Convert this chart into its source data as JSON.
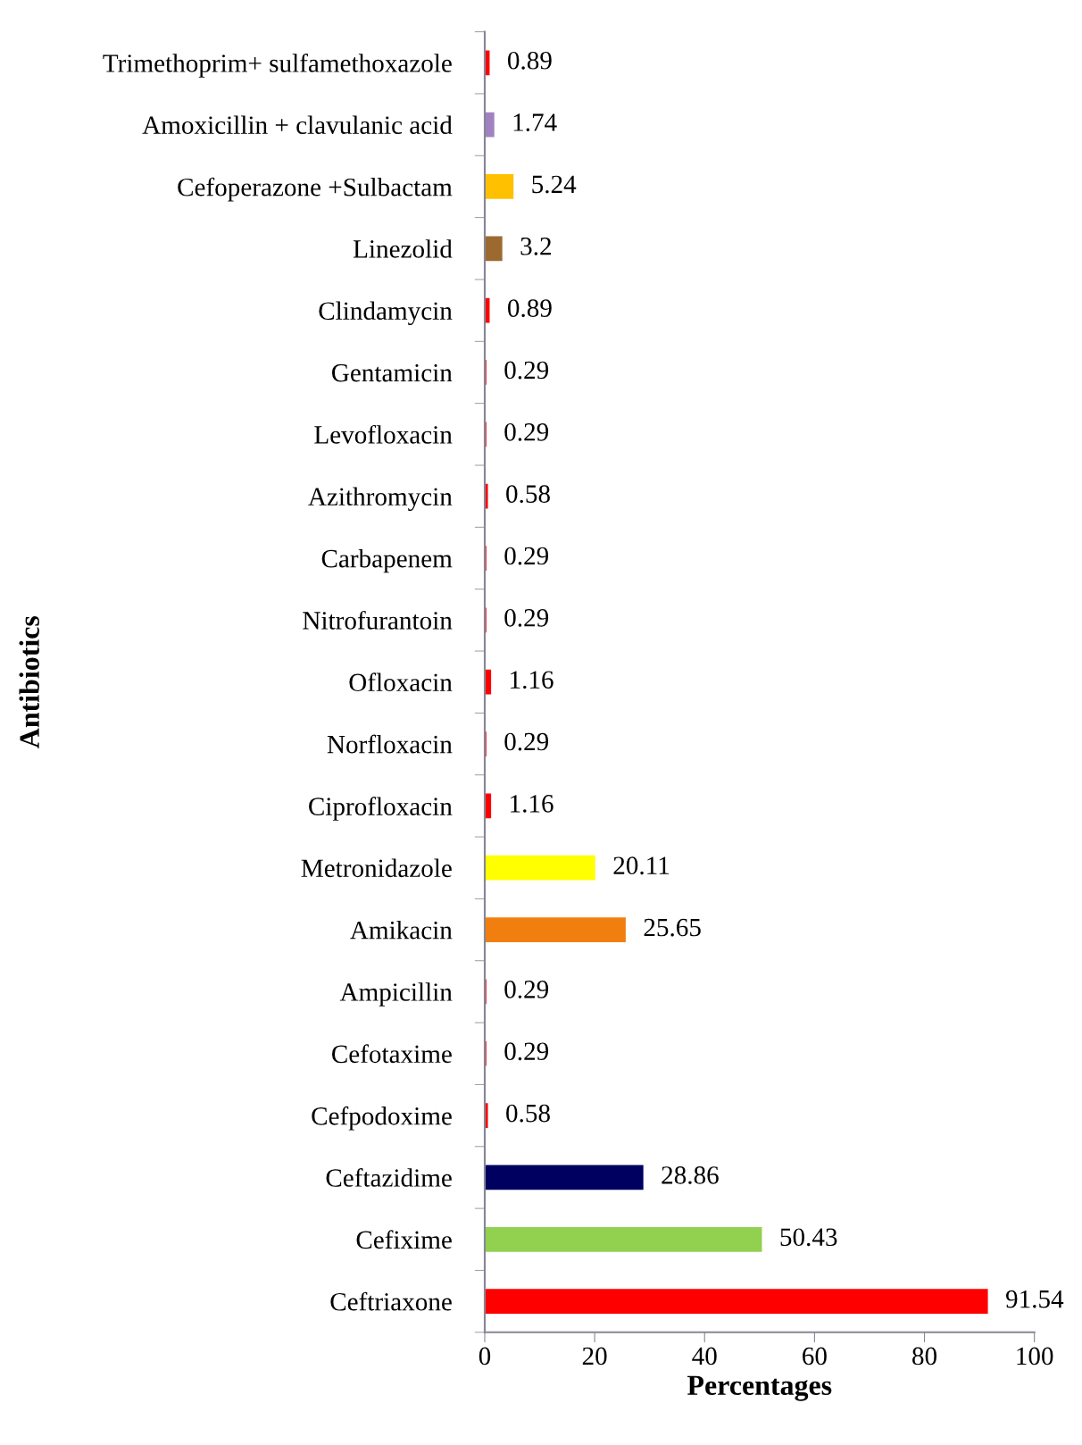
{
  "chart_data": {
    "type": "bar",
    "orientation": "horizontal",
    "xlabel": "Percentages",
    "ylabel": "Antibiotics",
    "categories": [
      "Trimethoprim+ sulfamethoxazole",
      "Amoxicillin + clavulanic acid",
      "Cefoperazone +Sulbactam",
      "Linezolid",
      "Clindamycin",
      "Gentamicin",
      "Levofloxacin",
      "Azithromycin",
      "Carbapenem",
      "Nitrofurantoin",
      "Ofloxacin",
      "Norfloxacin",
      "Ciprofloxacin",
      "Metronidazole",
      "Amikacin",
      "Ampicillin",
      "Cefotaxime",
      "Cefpodoxime",
      "Ceftazidime",
      "Cefixime",
      "Ceftriaxone"
    ],
    "values": [
      0.89,
      1.74,
      5.24,
      3.2,
      0.89,
      0.29,
      0.29,
      0.58,
      0.29,
      0.29,
      1.16,
      0.29,
      1.16,
      20.11,
      25.65,
      0.29,
      0.29,
      0.58,
      28.86,
      50.43,
      91.54
    ],
    "colors": [
      "#ff0000",
      "#a082c0",
      "#ffc000",
      "#9c6a30",
      "#ff0000",
      "#ff0000",
      "#ff0000",
      "#ff0000",
      "#ff0000",
      "#ff0000",
      "#ff0000",
      "#ff0000",
      "#ff0000",
      "#ffff00",
      "#f07f0f",
      "#ff0000",
      "#ff0000",
      "#ff0000",
      "#000060",
      "#92d050",
      "#ff0000"
    ],
    "data_labels": true,
    "xlim": [
      0,
      100
    ],
    "xticks": [
      0,
      20,
      40,
      60,
      80,
      100
    ],
    "grid": false
  }
}
